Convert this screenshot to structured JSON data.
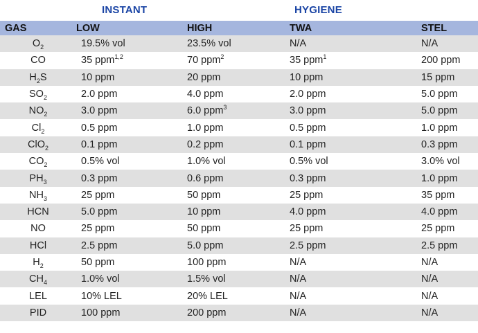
{
  "groups": {
    "instant": "INSTANT",
    "hygiene": "HYGIENE"
  },
  "columns": {
    "gas": "GAS",
    "low": "LOW",
    "high": "HIGH",
    "twa": "TWA",
    "stel": "STEL"
  },
  "rows": [
    {
      "gas_base": "O",
      "gas_sub": "2",
      "gas_tail": "",
      "low": "19.5% vol",
      "low_sup": "",
      "high": "23.5% vol",
      "high_sup": "",
      "twa": "N/A",
      "twa_sup": "",
      "stel": "N/A"
    },
    {
      "gas_base": "CO",
      "gas_sub": "",
      "gas_tail": "",
      "low": "35 ppm",
      "low_sup": "1,2",
      "high": "70 ppm",
      "high_sup": "2",
      "twa": "35 ppm",
      "twa_sup": "1",
      "stel": "200 ppm"
    },
    {
      "gas_base": "H",
      "gas_sub": "2",
      "gas_tail": "S",
      "low": "10 ppm",
      "low_sup": "",
      "high": "20 ppm",
      "high_sup": "",
      "twa": "10 ppm",
      "twa_sup": "",
      "stel": "15 ppm"
    },
    {
      "gas_base": "SO",
      "gas_sub": "2",
      "gas_tail": "",
      "low": "2.0 ppm",
      "low_sup": "",
      "high": "4.0 ppm",
      "high_sup": "",
      "twa": "2.0 ppm",
      "twa_sup": "",
      "stel": "5.0 ppm"
    },
    {
      "gas_base": "NO",
      "gas_sub": "2",
      "gas_tail": "",
      "low": "3.0 ppm",
      "low_sup": "",
      "high": "6.0 ppm",
      "high_sup": "3",
      "twa": "3.0 ppm",
      "twa_sup": "",
      "stel": "5.0 ppm"
    },
    {
      "gas_base": "Cl",
      "gas_sub": "2",
      "gas_tail": "",
      "low": "0.5 ppm",
      "low_sup": "",
      "high": "1.0 ppm",
      "high_sup": "",
      "twa": "0.5 ppm",
      "twa_sup": "",
      "stel": "1.0 ppm"
    },
    {
      "gas_base": "ClO",
      "gas_sub": "2",
      "gas_tail": "",
      "low": "0.1 ppm",
      "low_sup": "",
      "high": "0.2 ppm",
      "high_sup": "",
      "twa": "0.1 ppm",
      "twa_sup": "",
      "stel": "0.3 ppm"
    },
    {
      "gas_base": "CO",
      "gas_sub": "2",
      "gas_tail": "",
      "low": "0.5% vol",
      "low_sup": "",
      "high": "1.0% vol",
      "high_sup": "",
      "twa": "0.5% vol",
      "twa_sup": "",
      "stel": "3.0% vol"
    },
    {
      "gas_base": "PH",
      "gas_sub": "3",
      "gas_tail": "",
      "low": "0.3 ppm",
      "low_sup": "",
      "high": "0.6 ppm",
      "high_sup": "",
      "twa": "0.3 ppm",
      "twa_sup": "",
      "stel": "1.0 ppm"
    },
    {
      "gas_base": "NH",
      "gas_sub": "3",
      "gas_tail": "",
      "low": "25 ppm",
      "low_sup": "",
      "high": "50 ppm",
      "high_sup": "",
      "twa": "25 ppm",
      "twa_sup": "",
      "stel": "35 ppm"
    },
    {
      "gas_base": "HCN",
      "gas_sub": "",
      "gas_tail": "",
      "low": "5.0 ppm",
      "low_sup": "",
      "high": "10 ppm",
      "high_sup": "",
      "twa": "4.0 ppm",
      "twa_sup": "",
      "stel": "4.0 ppm"
    },
    {
      "gas_base": "NO",
      "gas_sub": "",
      "gas_tail": "",
      "low": "25 ppm",
      "low_sup": "",
      "high": "50 ppm",
      "high_sup": "",
      "twa": "25 ppm",
      "twa_sup": "",
      "stel": "25 ppm"
    },
    {
      "gas_base": "HCl",
      "gas_sub": "",
      "gas_tail": "",
      "low": "2.5 ppm",
      "low_sup": "",
      "high": "5.0 ppm",
      "high_sup": "",
      "twa": "2.5 ppm",
      "twa_sup": "",
      "stel": "2.5 ppm"
    },
    {
      "gas_base": "H",
      "gas_sub": "2",
      "gas_tail": "",
      "low": "50 ppm",
      "low_sup": "",
      "high": "100 ppm",
      "high_sup": "",
      "twa": "N/A",
      "twa_sup": "",
      "stel": "N/A"
    },
    {
      "gas_base": "CH",
      "gas_sub": "4",
      "gas_tail": "",
      "low": "1.0% vol",
      "low_sup": "",
      "high": "1.5% vol",
      "high_sup": "",
      "twa": "N/A",
      "twa_sup": "",
      "stel": "N/A"
    },
    {
      "gas_base": "LEL",
      "gas_sub": "",
      "gas_tail": "",
      "low": "10% LEL",
      "low_sup": "",
      "high": "20% LEL",
      "high_sup": "",
      "twa": "N/A",
      "twa_sup": "",
      "stel": "N/A"
    },
    {
      "gas_base": "PID",
      "gas_sub": "",
      "gas_tail": "",
      "low": "100 ppm",
      "low_sup": "",
      "high": "200 ppm",
      "high_sup": "",
      "twa": "N/A",
      "twa_sup": "",
      "stel": "N/A"
    }
  ],
  "colors": {
    "group_label": "#1b45a5",
    "header_bg": "#a5b6de",
    "stripe_bg": "#e0e0e0"
  }
}
